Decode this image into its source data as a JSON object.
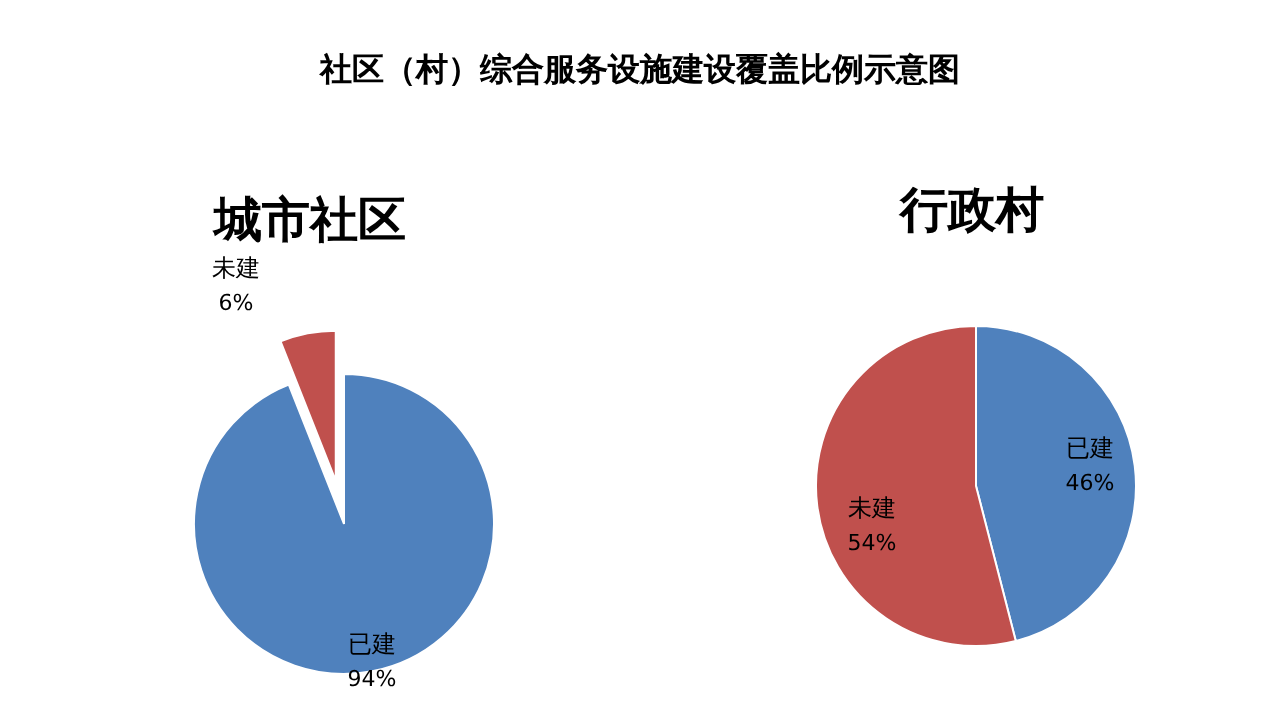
{
  "chart_data": [
    {
      "type": "pie",
      "title": "社区（村）综合服务设施建设覆盖比例示意图",
      "subtitle": "城市社区",
      "categories": [
        "已建",
        "未建"
      ],
      "values": [
        94,
        6
      ],
      "value_labels": [
        "94%",
        "6%"
      ],
      "colors": [
        "#4f81bd",
        "#c0504d"
      ]
    },
    {
      "type": "pie",
      "subtitle": "行政村",
      "categories": [
        "已建",
        "未建"
      ],
      "values": [
        46,
        54
      ],
      "value_labels": [
        "46%",
        "54%"
      ],
      "colors": [
        "#4f81bd",
        "#c0504d"
      ]
    }
  ]
}
